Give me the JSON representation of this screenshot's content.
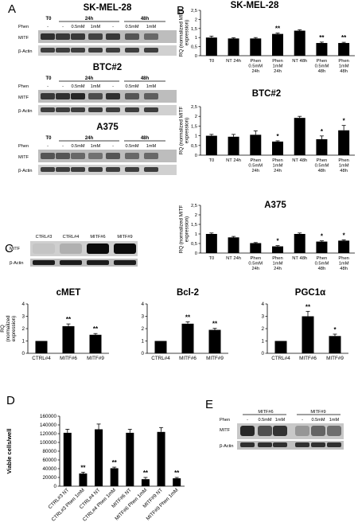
{
  "panel_letters": [
    "A",
    "B",
    "C",
    "D",
    "E"
  ],
  "blots_A": [
    {
      "cell_line": "SK-MEL-28",
      "time_labels": [
        "T0",
        "24h",
        "48h"
      ],
      "phen_row_label": "Phen",
      "phen_values": [
        "-",
        "-",
        "0.5mM",
        "1mM",
        "-",
        "0.5mM",
        "1mM"
      ],
      "rows": [
        "MITF",
        "β-Actin"
      ]
    },
    {
      "cell_line": "BTC#2",
      "time_labels": [
        "T0",
        "24h",
        "48h"
      ],
      "phen_row_label": "Phen",
      "phen_values": [
        "-",
        "-",
        "0.5mM",
        "1mM",
        "-",
        "0.5mM",
        "1mM"
      ],
      "rows": [
        "MITF",
        "β-Actin"
      ]
    },
    {
      "cell_line": "A375",
      "time_labels": [
        "T0",
        "24h",
        "48h"
      ],
      "phen_row_label": "Phen",
      "phen_values": [
        "-",
        "-",
        "0.5mM",
        "1mM",
        "-",
        "0.5mM",
        "1mM"
      ],
      "rows": [
        "MITF",
        "β-Actin"
      ]
    }
  ],
  "blot_C": {
    "lanes": [
      "CTRL#3",
      "CTRL#4",
      "MITF#6",
      "MITF#9"
    ],
    "rows": [
      "MITF",
      "β-Actin"
    ]
  },
  "blot_E": {
    "groups": [
      "MITF#6",
      "MITF#9"
    ],
    "phen_row_label": "Phen",
    "phen_values": [
      "-",
      "0.5mM",
      "1mM",
      "-",
      "0.5mM",
      "1mM"
    ],
    "rows": [
      "MITF",
      "β-Actin"
    ]
  },
  "chart_data": [
    {
      "panel": "B",
      "type": "bar",
      "title": "SK-MEL-28",
      "ylabel_lines": [
        "RQ (normalized MITF",
        "expression)"
      ],
      "ylim": [
        0,
        2.5
      ],
      "yticks": [
        "0",
        "0,5",
        "1",
        "1,5",
        "2",
        "2,5"
      ],
      "categories": [
        [
          "T0"
        ],
        [
          "NT 24h"
        ],
        [
          "Phen",
          "0.5mM",
          "24h"
        ],
        [
          "Phen",
          "1mM",
          "24h"
        ],
        [
          "NT 48h"
        ],
        [
          "Phen",
          "0.5mM",
          "48h"
        ],
        [
          "Phen",
          "1mM",
          "48h"
        ]
      ],
      "values": [
        1.0,
        0.95,
        0.95,
        1.2,
        1.38,
        0.7,
        0.7
      ],
      "errors": [
        0.08,
        0.04,
        0.05,
        0.05,
        0.05,
        0.05,
        0.04
      ],
      "annotations": [
        "",
        "",
        "",
        "**",
        "",
        "**",
        "**"
      ],
      "color": "#000000"
    },
    {
      "panel": "B",
      "type": "bar",
      "title": "BTC#2",
      "ylabel_lines": [
        "RQ (normalized MITF",
        "expression)"
      ],
      "ylim": [
        0,
        2.5
      ],
      "yticks": [
        "0",
        "0,5",
        "1",
        "1,5",
        "2",
        "2,5"
      ],
      "categories": [
        [
          "T0"
        ],
        [
          "NT 24h"
        ],
        [
          "Phen",
          "0.5mM",
          "24h"
        ],
        [
          "Phen",
          "1mM",
          "24h"
        ],
        [
          "NT 48h"
        ],
        [
          "Phen",
          "0.5mM",
          "48h"
        ],
        [
          "Phen",
          "1mM",
          "48h"
        ]
      ],
      "values": [
        1.0,
        0.95,
        1.05,
        0.7,
        1.92,
        0.82,
        1.28
      ],
      "errors": [
        0.07,
        0.12,
        0.2,
        0.04,
        0.08,
        0.17,
        0.25
      ],
      "annotations": [
        "",
        "",
        "",
        "*",
        "",
        "*",
        "*"
      ],
      "color": "#000000"
    },
    {
      "panel": "B",
      "type": "bar",
      "title": "A375",
      "ylabel_lines": [
        "RQ (normalized MITF",
        "expression)"
      ],
      "ylim": [
        0,
        2.5
      ],
      "yticks": [
        "0",
        "0,5",
        "1",
        "1,5",
        "2",
        "2,5"
      ],
      "categories": [
        [
          "T0"
        ],
        [
          "NT 24h"
        ],
        [
          "Phen",
          "0.5mM",
          "24h"
        ],
        [
          "Phen",
          "1mM",
          "24h"
        ],
        [
          "NT 48h"
        ],
        [
          "Phen",
          "0.5mM",
          "48h"
        ],
        [
          "Phen",
          "1mM",
          "48h"
        ]
      ],
      "values": [
        1.0,
        0.82,
        0.52,
        0.35,
        1.0,
        0.6,
        0.65
      ],
      "errors": [
        0.05,
        0.05,
        0.03,
        0.04,
        0.05,
        0.04,
        0.04
      ],
      "annotations": [
        "",
        "",
        "",
        "*",
        "",
        "*",
        "*"
      ],
      "color": "#000000"
    },
    {
      "panel": "C",
      "type": "bar",
      "title": "cMET",
      "ylabel_lines": [
        "RQ",
        "(normalized",
        "expression)"
      ],
      "ylim": [
        0,
        4
      ],
      "yticks": [
        "0",
        "1",
        "2",
        "3",
        "4"
      ],
      "categories": [
        [
          "CTRL#4"
        ],
        [
          "MITF#6"
        ],
        [
          "MITF#9"
        ]
      ],
      "values": [
        1.0,
        2.2,
        1.5
      ],
      "errors": [
        0.0,
        0.18,
        0.1
      ],
      "annotations": [
        "",
        "**",
        "**"
      ],
      "color": "#000000"
    },
    {
      "panel": "C",
      "type": "bar",
      "title": "Bcl-2",
      "ylabel_lines": [],
      "ylim": [
        0,
        4
      ],
      "yticks": [
        "0",
        "1",
        "2",
        "3",
        "4"
      ],
      "categories": [
        [
          "CTRL#4"
        ],
        [
          "MITF#6"
        ],
        [
          "MITF#9"
        ]
      ],
      "values": [
        1.0,
        2.4,
        1.9
      ],
      "errors": [
        0.0,
        0.15,
        0.12
      ],
      "annotations": [
        "",
        "**",
        "**"
      ],
      "color": "#000000"
    },
    {
      "panel": "C",
      "type": "bar",
      "title": "PGC1α",
      "ylabel_lines": [],
      "ylim": [
        0,
        4
      ],
      "yticks": [
        "0",
        "1",
        "2",
        "3",
        "4"
      ],
      "categories": [
        [
          "CTRL#4"
        ],
        [
          "MITF#6"
        ],
        [
          "MITF#9"
        ]
      ],
      "values": [
        1.0,
        3.0,
        1.4
      ],
      "errors": [
        0.0,
        0.4,
        0.15
      ],
      "annotations": [
        "",
        "**",
        "*"
      ],
      "color": "#000000"
    },
    {
      "panel": "D",
      "type": "bar",
      "title": "",
      "ylabel_lines": [
        "Viable cells/well"
      ],
      "ylim": [
        0,
        160000
      ],
      "yticks": [
        "0",
        "20000",
        "40000",
        "60000",
        "80000",
        "100000",
        "120000",
        "140000",
        "160000"
      ],
      "categories": [
        [
          "CTRL#3 NT"
        ],
        [
          "CTRL#3 Phen 1mM"
        ],
        [
          "CTRL#4 NT"
        ],
        [
          "CTRL#4 Phen 1mM"
        ],
        [
          "MITF#6 NT"
        ],
        [
          "MITF#6 Phen 1mM"
        ],
        [
          "MITF#9 NT"
        ],
        [
          "MITF#9 Phen 1mM"
        ]
      ],
      "values": [
        122000,
        29000,
        130000,
        41000,
        122000,
        16000,
        124000,
        18000
      ],
      "errors": [
        8000,
        3000,
        12000,
        2500,
        8000,
        4000,
        10000,
        2000
      ],
      "annotations": [
        "",
        "**",
        "",
        "**",
        "",
        "**",
        "",
        "**"
      ],
      "color": "#000000"
    }
  ]
}
